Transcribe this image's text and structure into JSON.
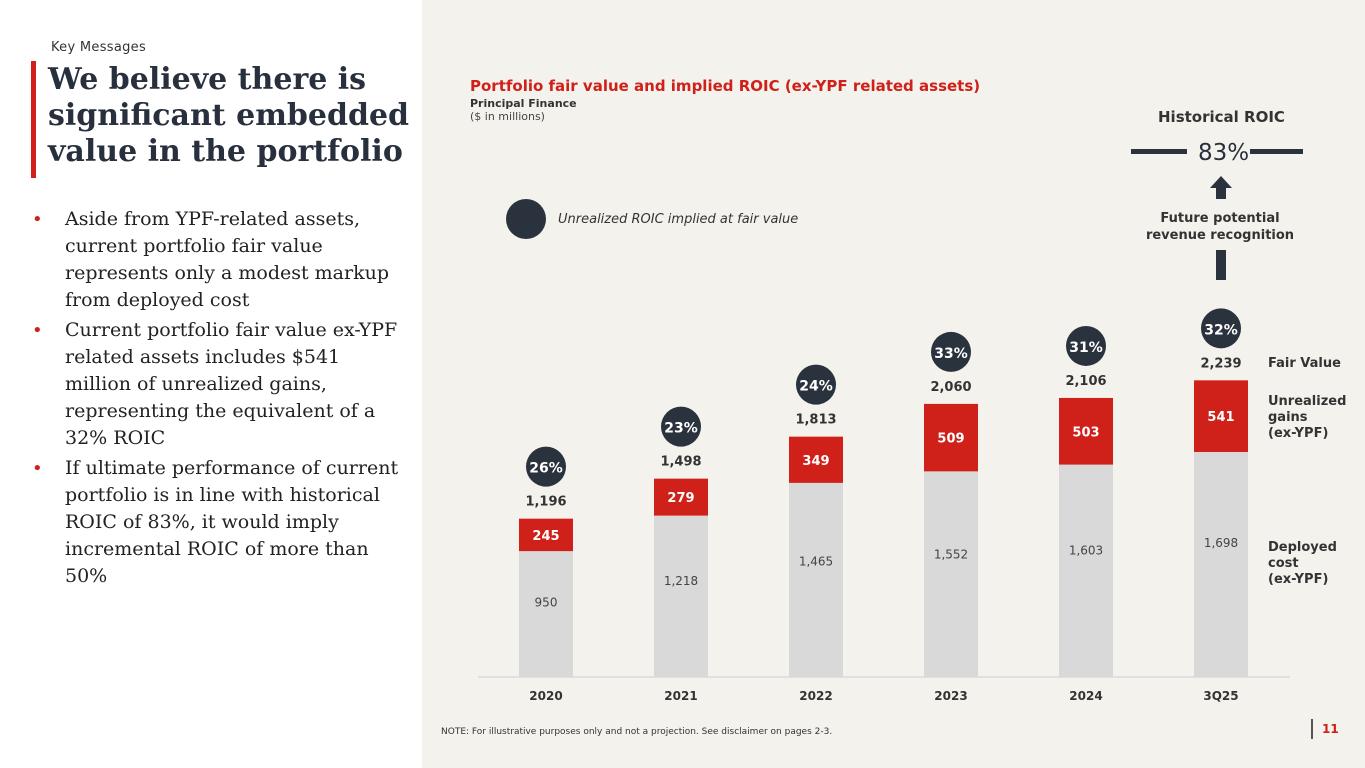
{
  "slide": {
    "section_label": "Key Messages",
    "title": "We believe there is significant embedded value in the portfolio",
    "bullets": [
      "Aside from YPF-related assets, current portfolio fair value represents only a modest markup from deployed cost",
      "Current portfolio fair value ex-YPF related assets includes $541 million of unrealized gains, representing the equivalent of a 32% ROIC",
      "If ultimate performance of current portfolio is in line with historical ROIC of 83%, it would imply incremental ROIC of more than 50%"
    ],
    "bullet_marker": "•",
    "note": "NOTE: For illustrative purposes only and not a projection. See disclaimer on pages 2-3.",
    "page_number": "11"
  },
  "colors": {
    "accent_red": "#d0201a",
    "bar_gray": "#d9d9d9",
    "dark_navy": "#2a323e",
    "panel_bg": "#f4f2ed"
  },
  "chart_data": {
    "type": "bar",
    "stacked": true,
    "title": "Portfolio fair value and implied ROIC (ex-YPF related assets)",
    "subtitle": "Principal Finance",
    "units": "($ in millions)",
    "categories": [
      "2020",
      "2021",
      "2022",
      "2023",
      "2024",
      "3Q25"
    ],
    "series": [
      {
        "name": "Deployed cost (ex-YPF)",
        "values": [
          950,
          1218,
          1465,
          1552,
          1603,
          1698
        ],
        "labels": [
          "950",
          "1,218",
          "1,465",
          "1,552",
          "1,603",
          "1,698"
        ]
      },
      {
        "name": "Unrealized gains (ex-YPF)",
        "values": [
          245,
          279,
          349,
          509,
          503,
          541
        ],
        "labels": [
          "245",
          "279",
          "349",
          "509",
          "503",
          "541"
        ]
      }
    ],
    "totals": [
      1196,
      1498,
      1813,
      2060,
      2106,
      2239
    ],
    "total_labels": [
      "1,196",
      "1,498",
      "1,813",
      "2,060",
      "2,106",
      "2,239"
    ],
    "roic_labels": [
      "26%",
      "23%",
      "24%",
      "33%",
      "31%",
      "32%"
    ],
    "ylim": [
      0,
      2600
    ],
    "legend": {
      "roic": "Unrealized ROIC implied at fair value"
    },
    "side_labels": {
      "fair_value": "Fair Value",
      "unrealized": [
        "Unrealized",
        "gains",
        "(ex-YPF)"
      ],
      "deployed": [
        "Deployed",
        "cost",
        "(ex-YPF)"
      ]
    },
    "historical": {
      "label": "Historical ROIC",
      "value": "83%",
      "future_label": [
        "Future potential",
        "revenue recognition"
      ]
    }
  }
}
